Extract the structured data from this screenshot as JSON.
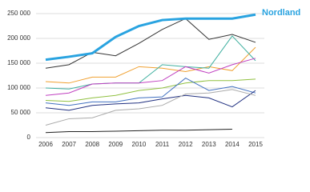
{
  "chart_data": {
    "type": "line",
    "categories": [
      "2006",
      "2007",
      "2008",
      "2009",
      "2010",
      "2011",
      "2012",
      "2013",
      "2014",
      "2015"
    ],
    "ylim": [
      0,
      250000
    ],
    "yticks": [
      0,
      {
        "value": 50000,
        "label": "50 000"
      },
      {
        "value": 100000,
        "label": "100 000"
      },
      {
        "value": 150000,
        "label": "150 000"
      },
      {
        "value": 200000,
        "label": "200 000"
      },
      {
        "value": 250000,
        "label": "250 000"
      }
    ],
    "grid": true,
    "series": [
      {
        "color": "#333333",
        "values": [
          140000,
          147000,
          172000,
          165000,
          190000,
          218000,
          240000,
          198000,
          208000,
          192000
        ]
      },
      {
        "color": "#f0a030",
        "values": [
          113000,
          110000,
          122000,
          122000,
          143000,
          140000,
          133000,
          143000,
          135000,
          182000
        ]
      },
      {
        "color": "#40b0a0",
        "values": [
          100000,
          98000,
          108000,
          110000,
          110000,
          147000,
          143000,
          140000,
          205000,
          155000
        ]
      },
      {
        "color": "#c040c0",
        "values": [
          85000,
          90000,
          108000,
          110000,
          110000,
          115000,
          143000,
          130000,
          147000,
          160000
        ]
      },
      {
        "color": "#90c040",
        "values": [
          75000,
          73000,
          80000,
          85000,
          95000,
          100000,
          110000,
          115000,
          115000,
          118000
        ]
      },
      {
        "color": "#4070c0",
        "values": [
          70000,
          65000,
          72000,
          72000,
          80000,
          82000,
          120000,
          95000,
          103000,
          90000
        ]
      },
      {
        "color": "#203080",
        "values": [
          60000,
          55000,
          65000,
          68000,
          70000,
          78000,
          85000,
          80000,
          62000,
          95000
        ]
      },
      {
        "color": "#aaaaaa",
        "values": [
          25000,
          38000,
          40000,
          55000,
          58000,
          65000,
          88000,
          90000,
          97000,
          85000
        ]
      },
      {
        "color": "#222222",
        "values": [
          10000,
          12000,
          12000,
          13000,
          14000,
          15000,
          15000,
          16000,
          17000,
          null
        ]
      },
      {
        "name": "Nordland",
        "color": "#29a3e0",
        "width": 3,
        "values": [
          157000,
          163000,
          170000,
          203000,
          225000,
          237000,
          240000,
          240000,
          240000,
          248000
        ]
      }
    ]
  }
}
